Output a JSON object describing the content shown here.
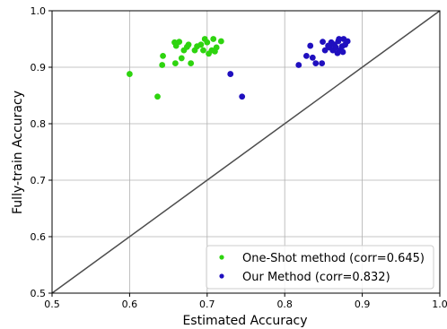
{
  "chart_data": {
    "type": "scatter",
    "xlabel": "Estimated Accuracy",
    "ylabel": "Fully-train Accuracy",
    "xlim": [
      0.5,
      1.0
    ],
    "ylim": [
      0.5,
      1.0
    ],
    "xticks": [
      "0.5",
      "0.6",
      "0.7",
      "0.8",
      "0.9",
      "1.0"
    ],
    "yticks": [
      "0.5",
      "0.6",
      "0.7",
      "0.8",
      "0.9",
      "1.0"
    ],
    "grid": true,
    "legend_position": "lower-right",
    "reference_line": {
      "from": [
        0.5,
        0.5
      ],
      "to": [
        1.0,
        1.0
      ],
      "color": "#4d4d4d"
    },
    "series": [
      {
        "name": "One-Shot method (corr=0.645)",
        "color": "#2ed40f",
        "points": [
          [
            0.6,
            0.888
          ],
          [
            0.636,
            0.848
          ],
          [
            0.642,
            0.904
          ],
          [
            0.643,
            0.92
          ],
          [
            0.658,
            0.944
          ],
          [
            0.66,
            0.938
          ],
          [
            0.659,
            0.907
          ],
          [
            0.664,
            0.945
          ],
          [
            0.667,
            0.916
          ],
          [
            0.67,
            0.93
          ],
          [
            0.674,
            0.936
          ],
          [
            0.676,
            0.94
          ],
          [
            0.679,
            0.907
          ],
          [
            0.684,
            0.93
          ],
          [
            0.687,
            0.937
          ],
          [
            0.692,
            0.94
          ],
          [
            0.695,
            0.93
          ],
          [
            0.697,
            0.95
          ],
          [
            0.7,
            0.944
          ],
          [
            0.702,
            0.924
          ],
          [
            0.706,
            0.93
          ],
          [
            0.708,
            0.95
          ],
          [
            0.71,
            0.928
          ],
          [
            0.712,
            0.935
          ],
          [
            0.718,
            0.946
          ]
        ]
      },
      {
        "name": "Our Method (corr=0.832)",
        "color": "#1f0fbf",
        "points": [
          [
            0.73,
            0.888
          ],
          [
            0.745,
            0.848
          ],
          [
            0.818,
            0.904
          ],
          [
            0.828,
            0.92
          ],
          [
            0.833,
            0.938
          ],
          [
            0.836,
            0.917
          ],
          [
            0.84,
            0.907
          ],
          [
            0.848,
            0.907
          ],
          [
            0.849,
            0.945
          ],
          [
            0.852,
            0.93
          ],
          [
            0.856,
            0.938
          ],
          [
            0.858,
            0.935
          ],
          [
            0.86,
            0.944
          ],
          [
            0.862,
            0.93
          ],
          [
            0.864,
            0.94
          ],
          [
            0.866,
            0.935
          ],
          [
            0.868,
            0.925
          ],
          [
            0.869,
            0.946
          ],
          [
            0.87,
            0.95
          ],
          [
            0.872,
            0.93
          ],
          [
            0.874,
            0.937
          ],
          [
            0.875,
            0.927
          ],
          [
            0.876,
            0.95
          ],
          [
            0.878,
            0.94
          ],
          [
            0.881,
            0.946
          ]
        ]
      }
    ]
  }
}
